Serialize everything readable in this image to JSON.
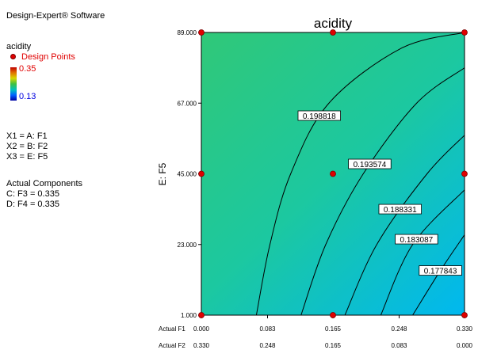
{
  "software_title": "Design-Expert® Software",
  "response_name": "acidity",
  "legend": {
    "design_points_label": "Design Points",
    "scale_max": "0.35",
    "scale_min": "0.13"
  },
  "factor_map": [
    "X1 = A: F1",
    "X2 = B: F2",
    "X3 = E: F5"
  ],
  "actual_components": {
    "heading": "Actual Components",
    "items": [
      "C: F3 = 0.335",
      "D: F4 = 0.335"
    ]
  },
  "chart_data": {
    "type": "contour",
    "title": "acidity",
    "ylabel": "E: F5",
    "x_row1_prefix": "Actual F1",
    "x_row2_prefix": "Actual F2",
    "x_ticks_f1": [
      "0.000",
      "0.083",
      "0.165",
      "0.248",
      "0.330"
    ],
    "x_ticks_f2": [
      "0.330",
      "0.248",
      "0.165",
      "0.083",
      "0.000"
    ],
    "xlim": [
      0,
      0.33
    ],
    "y_ticks": [
      "1.000",
      "23.000",
      "45.000",
      "67.000",
      "89.000"
    ],
    "ylim": [
      1,
      89
    ],
    "design_points": [
      {
        "x": 0,
        "y": 89
      },
      {
        "x": 0.165,
        "y": 89
      },
      {
        "x": 0.33,
        "y": 89
      },
      {
        "x": 0,
        "y": 45
      },
      {
        "x": 0.165,
        "y": 45
      },
      {
        "x": 0.33,
        "y": 45
      },
      {
        "x": 0,
        "y": 1
      },
      {
        "x": 0.165,
        "y": 1
      },
      {
        "x": 0.33,
        "y": 1
      }
    ],
    "contours": [
      {
        "label": "0.198818",
        "points": [
          [
            0.069,
            1
          ],
          [
            0.086,
            23
          ],
          [
            0.112,
            45
          ],
          [
            0.16,
            67
          ],
          [
            0.25,
            84
          ],
          [
            0.33,
            89
          ]
        ]
      },
      {
        "label": "0.193574",
        "points": [
          [
            0.125,
            1
          ],
          [
            0.156,
            23
          ],
          [
            0.203,
            45
          ],
          [
            0.27,
            67
          ],
          [
            0.33,
            78
          ]
        ]
      },
      {
        "label": "0.188331",
        "points": [
          [
            0.18,
            1
          ],
          [
            0.22,
            23
          ],
          [
            0.283,
            45
          ],
          [
            0.33,
            57
          ]
        ]
      },
      {
        "label": "0.183087",
        "points": [
          [
            0.225,
            1
          ],
          [
            0.265,
            23
          ],
          [
            0.33,
            40
          ]
        ]
      },
      {
        "label": "0.177843",
        "points": [
          [
            0.265,
            1
          ],
          [
            0.3,
            15
          ],
          [
            0.33,
            26
          ]
        ]
      }
    ],
    "colors": {
      "top_left": "#30c878",
      "bottom_right": "#00b8f0",
      "point": "#e00000"
    }
  }
}
